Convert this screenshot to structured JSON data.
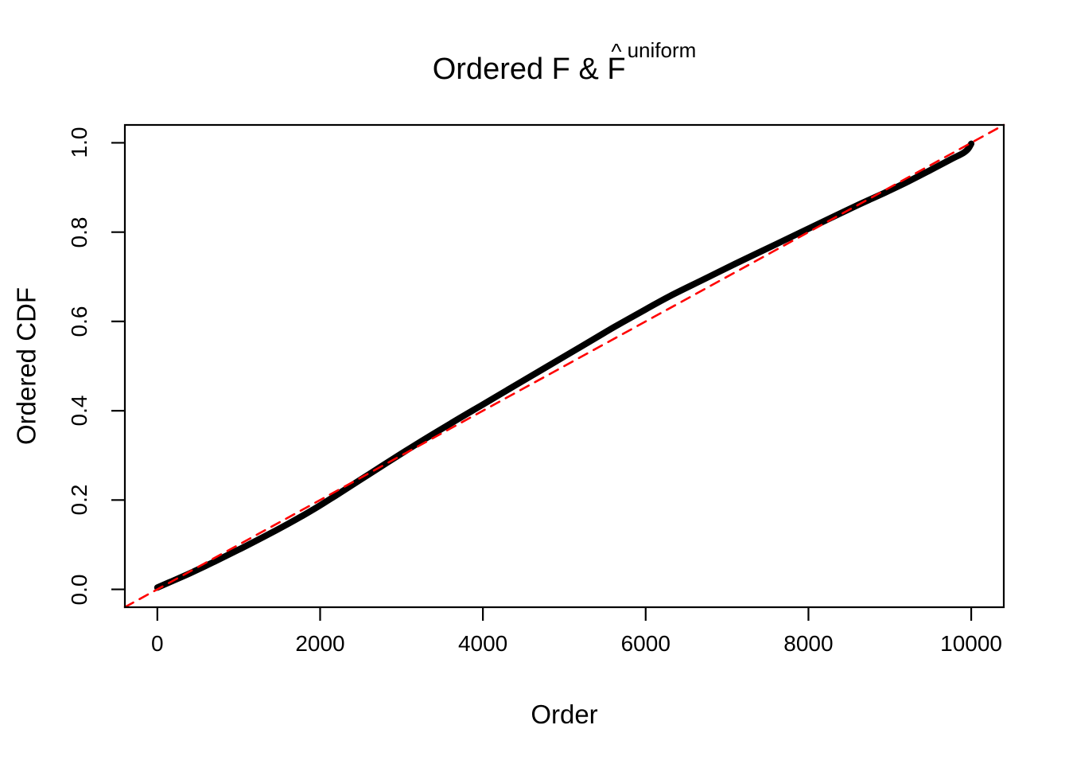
{
  "title": {
    "main": "Ordered F & ",
    "hat_base": "F",
    "hat": "^",
    "superscript": "uniform",
    "full": "Ordered F & F-hat^uniform"
  },
  "axes": {
    "xlabel": "Order",
    "ylabel": "Ordered CDF",
    "x_tick_labels": [
      "0",
      "2000",
      "4000",
      "6000",
      "8000",
      "10000"
    ],
    "y_tick_labels": [
      "0.0",
      "0.2",
      "0.4",
      "0.6",
      "0.8",
      "1.0"
    ]
  },
  "colors": {
    "background": "#ffffff",
    "foreground": "#000000",
    "curve": "#000000",
    "reference_line": "#ff0000"
  },
  "chart_data": {
    "type": "line",
    "title": "Ordered F & F-hat^uniform",
    "xlabel": "Order",
    "ylabel": "Ordered CDF",
    "xlim": [
      -399,
      10400
    ],
    "ylim": [
      -0.04,
      1.04
    ],
    "x_ticks": [
      0,
      2000,
      4000,
      6000,
      8000,
      10000
    ],
    "y_ticks": [
      0.0,
      0.2,
      0.4,
      0.6,
      0.8,
      1.0
    ],
    "grid": false,
    "legend": null,
    "series": [
      {
        "name": "ordered-empirical-cdf",
        "type": "line",
        "color": "#000000",
        "stroke_width": 8,
        "dashed": false,
        "points": [
          [
            0,
            0.004
          ],
          [
            150,
            0.016
          ],
          [
            400,
            0.036
          ],
          [
            700,
            0.062
          ],
          [
            1000,
            0.089
          ],
          [
            1300,
            0.117
          ],
          [
            1600,
            0.146
          ],
          [
            1900,
            0.177
          ],
          [
            2200,
            0.211
          ],
          [
            2500,
            0.246
          ],
          [
            2800,
            0.281
          ],
          [
            3200,
            0.327
          ],
          [
            3600,
            0.371
          ],
          [
            4000,
            0.414
          ],
          [
            4400,
            0.457
          ],
          [
            4800,
            0.5
          ],
          [
            5200,
            0.543
          ],
          [
            5600,
            0.586
          ],
          [
            6000,
            0.627
          ],
          [
            6300,
            0.657
          ],
          [
            6700,
            0.693
          ],
          [
            7100,
            0.729
          ],
          [
            7500,
            0.764
          ],
          [
            7900,
            0.799
          ],
          [
            8300,
            0.834
          ],
          [
            8600,
            0.86
          ],
          [
            8900,
            0.885
          ],
          [
            9200,
            0.911
          ],
          [
            9500,
            0.939
          ],
          [
            9750,
            0.963
          ],
          [
            9900,
            0.977
          ],
          [
            9960,
            0.986
          ],
          [
            10000,
            0.998
          ]
        ]
      },
      {
        "name": "uniform-reference",
        "type": "line",
        "color": "#ff0000",
        "stroke_width": 2.6,
        "dashed": true,
        "equation": "y = x / 10000",
        "points": [
          [
            -399,
            -0.0399
          ],
          [
            10400,
            1.04
          ]
        ]
      }
    ]
  }
}
